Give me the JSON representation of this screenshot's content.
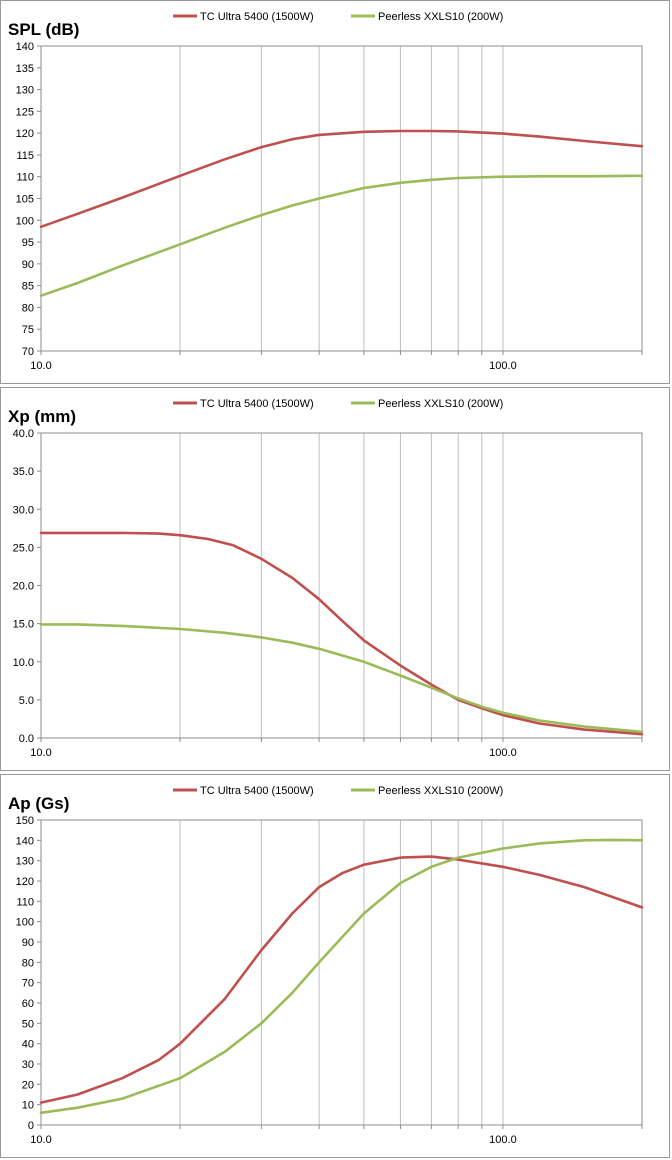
{
  "chart_data": [
    {
      "type": "line",
      "title": "SPL (dB)",
      "x_scale": "log",
      "xlim": [
        10,
        200
      ],
      "ylim": [
        70,
        140
      ],
      "y_ticks": [
        "70",
        "75",
        "80",
        "85",
        "90",
        "95",
        "100",
        "105",
        "110",
        "115",
        "120",
        "125",
        "130",
        "135",
        "140"
      ],
      "x_tick_labels": [
        {
          "x": 10,
          "label": "10.0"
        },
        {
          "x": 100,
          "label": "100.0"
        }
      ],
      "grid": "vertical",
      "legend_position": "top",
      "series": [
        {
          "name": "TC Ultra 5400 (1500W)",
          "color": "#c0504d",
          "points": [
            [
              10,
              98.5
            ],
            [
              12,
              101.5
            ],
            [
              15,
              105.2
            ],
            [
              20,
              110.2
            ],
            [
              25,
              114
            ],
            [
              30,
              116.8
            ],
            [
              35,
              118.6
            ],
            [
              40,
              119.6
            ],
            [
              50,
              120.3
            ],
            [
              60,
              120.5
            ],
            [
              70,
              120.5
            ],
            [
              80,
              120.4
            ],
            [
              100,
              119.9
            ],
            [
              120,
              119.2
            ],
            [
              150,
              118.2
            ],
            [
              200,
              117
            ]
          ]
        },
        {
          "name": "Peerless XXLS10 (200W)",
          "color": "#9bbb59",
          "points": [
            [
              10,
              82.7
            ],
            [
              12,
              85.6
            ],
            [
              15,
              89.6
            ],
            [
              20,
              94.5
            ],
            [
              25,
              98.3
            ],
            [
              30,
              101.2
            ],
            [
              35,
              103.4
            ],
            [
              40,
              105
            ],
            [
              50,
              107.4
            ],
            [
              60,
              108.6
            ],
            [
              70,
              109.3
            ],
            [
              80,
              109.7
            ],
            [
              100,
              110
            ],
            [
              120,
              110.1
            ],
            [
              150,
              110.1
            ],
            [
              200,
              110.2
            ]
          ]
        }
      ]
    },
    {
      "type": "line",
      "title": "Xp (mm)",
      "x_scale": "log",
      "xlim": [
        10,
        200
      ],
      "ylim": [
        0,
        40
      ],
      "y_ticks": [
        "0.0",
        "5.0",
        "10.0",
        "15.0",
        "20.0",
        "25.0",
        "30.0",
        "35.0",
        "40.0"
      ],
      "x_tick_labels": [
        {
          "x": 10,
          "label": "10.0"
        },
        {
          "x": 100,
          "label": "100.0"
        }
      ],
      "grid": "vertical",
      "legend_position": "top",
      "series": [
        {
          "name": "TC Ultra 5400 (1500W)",
          "color": "#c0504d",
          "points": [
            [
              10,
              26.9
            ],
            [
              15,
              26.9
            ],
            [
              18,
              26.8
            ],
            [
              20,
              26.6
            ],
            [
              23,
              26.1
            ],
            [
              26,
              25.3
            ],
            [
              30,
              23.5
            ],
            [
              35,
              21
            ],
            [
              40,
              18.2
            ],
            [
              45,
              15.3
            ],
            [
              50,
              12.8
            ],
            [
              60,
              9.5
            ],
            [
              70,
              7
            ],
            [
              80,
              5
            ],
            [
              90,
              3.9
            ],
            [
              100,
              3
            ],
            [
              120,
              1.9
            ],
            [
              150,
              1.1
            ],
            [
              200,
              0.5
            ]
          ]
        },
        {
          "name": "Peerless XXLS10 (200W)",
          "color": "#9bbb59",
          "points": [
            [
              10,
              14.9
            ],
            [
              12,
              14.9
            ],
            [
              15,
              14.7
            ],
            [
              20,
              14.3
            ],
            [
              25,
              13.8
            ],
            [
              30,
              13.2
            ],
            [
              35,
              12.5
            ],
            [
              40,
              11.7
            ],
            [
              50,
              10
            ],
            [
              60,
              8.2
            ],
            [
              70,
              6.6
            ],
            [
              80,
              5.2
            ],
            [
              90,
              4.1
            ],
            [
              100,
              3.3
            ],
            [
              120,
              2.3
            ],
            [
              150,
              1.5
            ],
            [
              200,
              0.8
            ]
          ]
        }
      ]
    },
    {
      "type": "line",
      "title": "Ap (Gs)",
      "x_scale": "log",
      "xlim": [
        10,
        200
      ],
      "ylim": [
        0,
        150
      ],
      "y_ticks": [
        "0",
        "10",
        "20",
        "30",
        "40",
        "50",
        "60",
        "70",
        "80",
        "90",
        "100",
        "110",
        "120",
        "130",
        "140",
        "150"
      ],
      "x_tick_labels": [
        {
          "x": 10,
          "label": "10.0"
        },
        {
          "x": 100,
          "label": "100.0"
        }
      ],
      "grid": "vertical",
      "legend_position": "top",
      "series": [
        {
          "name": "TC Ultra 5400 (1500W)",
          "color": "#c0504d",
          "points": [
            [
              10,
              11
            ],
            [
              12,
              15
            ],
            [
              15,
              23
            ],
            [
              18,
              32
            ],
            [
              20,
              40
            ],
            [
              25,
              62
            ],
            [
              30,
              86
            ],
            [
              35,
              104
            ],
            [
              40,
              117
            ],
            [
              45,
              124
            ],
            [
              50,
              128
            ],
            [
              60,
              131.5
            ],
            [
              70,
              132
            ],
            [
              80,
              130.5
            ],
            [
              100,
              127
            ],
            [
              120,
              123
            ],
            [
              150,
              117
            ],
            [
              200,
              107
            ]
          ]
        },
        {
          "name": "Peerless XXLS10 (200W)",
          "color": "#9bbb59",
          "points": [
            [
              10,
              6
            ],
            [
              12,
              8.5
            ],
            [
              15,
              13
            ],
            [
              20,
              23
            ],
            [
              25,
              36
            ],
            [
              30,
              50
            ],
            [
              35,
              65
            ],
            [
              40,
              80
            ],
            [
              50,
              104
            ],
            [
              60,
              119
            ],
            [
              70,
              127
            ],
            [
              80,
              131.5
            ],
            [
              100,
              136
            ],
            [
              120,
              138.5
            ],
            [
              150,
              140
            ],
            [
              175,
              140.2
            ],
            [
              200,
              140
            ]
          ]
        }
      ]
    }
  ]
}
